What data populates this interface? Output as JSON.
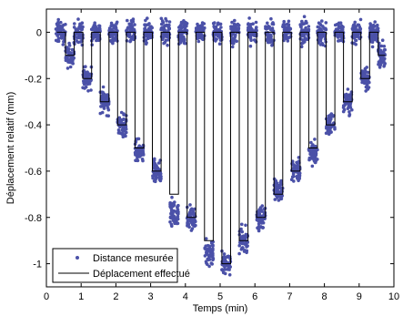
{
  "chart_data": {
    "type": "line",
    "title": "",
    "xlabel": "Temps (min)",
    "ylabel": "Déplacement relatif (mm)",
    "xlim": [
      0,
      10
    ],
    "ylim": [
      -1.1,
      0.1
    ],
    "x_ticks": [
      "0",
      "1",
      "2",
      "3",
      "4",
      "5",
      "6",
      "7",
      "8",
      "9",
      "10"
    ],
    "x_tick_values": [
      0,
      1,
      2,
      3,
      4,
      5,
      6,
      7,
      8,
      9,
      10
    ],
    "y_ticks": [
      "0",
      "-0.2",
      "-0.4",
      "-0.6",
      "-0.8",
      "-1"
    ],
    "y_tick_values": [
      0,
      -0.2,
      -0.4,
      -0.6,
      -0.8,
      -1
    ],
    "grid": false,
    "legend_position": "bottom-left",
    "series": [
      {
        "name": "Distance mesurée",
        "kind": "scatter",
        "marker": "dot",
        "color": "#4b51a8"
      },
      {
        "name": "Déplacement effectué",
        "kind": "step",
        "color": "#000000",
        "steps": [
          {
            "x0": 0.3,
            "x1": 0.55,
            "y": 0
          },
          {
            "x0": 0.55,
            "x1": 0.8,
            "y": -0.1
          },
          {
            "x0": 0.8,
            "x1": 1.05,
            "y": 0
          },
          {
            "x0": 1.05,
            "x1": 1.3,
            "y": -0.2
          },
          {
            "x0": 1.3,
            "x1": 1.55,
            "y": 0
          },
          {
            "x0": 1.55,
            "x1": 1.8,
            "y": -0.3
          },
          {
            "x0": 1.8,
            "x1": 2.05,
            "y": 0
          },
          {
            "x0": 2.05,
            "x1": 2.3,
            "y": -0.4
          },
          {
            "x0": 2.3,
            "x1": 2.55,
            "y": 0
          },
          {
            "x0": 2.55,
            "x1": 2.8,
            "y": -0.5
          },
          {
            "x0": 2.8,
            "x1": 3.05,
            "y": 0
          },
          {
            "x0": 3.05,
            "x1": 3.3,
            "y": -0.6
          },
          {
            "x0": 3.3,
            "x1": 3.55,
            "y": 0
          },
          {
            "x0": 3.55,
            "x1": 3.8,
            "y": -0.7
          },
          {
            "x0": 3.8,
            "x1": 4.05,
            "y": 0
          },
          {
            "x0": 4.05,
            "x1": 4.3,
            "y": -0.8
          },
          {
            "x0": 4.3,
            "x1": 4.55,
            "y": 0
          },
          {
            "x0": 4.55,
            "x1": 4.8,
            "y": -0.9
          },
          {
            "x0": 4.8,
            "x1": 5.05,
            "y": 0
          },
          {
            "x0": 5.05,
            "x1": 5.3,
            "y": -1.0
          },
          {
            "x0": 5.3,
            "x1": 5.55,
            "y": 0
          },
          {
            "x0": 5.55,
            "x1": 5.8,
            "y": -0.9
          },
          {
            "x0": 5.8,
            "x1": 6.05,
            "y": 0
          },
          {
            "x0": 6.05,
            "x1": 6.3,
            "y": -0.8
          },
          {
            "x0": 6.3,
            "x1": 6.55,
            "y": 0
          },
          {
            "x0": 6.55,
            "x1": 6.8,
            "y": -0.7
          },
          {
            "x0": 6.8,
            "x1": 7.05,
            "y": 0
          },
          {
            "x0": 7.05,
            "x1": 7.3,
            "y": -0.6
          },
          {
            "x0": 7.3,
            "x1": 7.55,
            "y": 0
          },
          {
            "x0": 7.55,
            "x1": 7.8,
            "y": -0.5
          },
          {
            "x0": 7.8,
            "x1": 8.05,
            "y": 0
          },
          {
            "x0": 8.05,
            "x1": 8.3,
            "y": -0.4
          },
          {
            "x0": 8.3,
            "x1": 8.55,
            "y": 0
          },
          {
            "x0": 8.55,
            "x1": 8.8,
            "y": -0.3
          },
          {
            "x0": 8.8,
            "x1": 9.05,
            "y": 0
          },
          {
            "x0": 9.05,
            "x1": 9.3,
            "y": -0.2
          },
          {
            "x0": 9.3,
            "x1": 9.55,
            "y": 0
          },
          {
            "x0": 9.55,
            "x1": 9.75,
            "y": -0.1
          }
        ]
      }
    ],
    "scatter_clusters": [
      {
        "x0": 0.25,
        "x1": 0.55,
        "y": 0,
        "spread": 0.04
      },
      {
        "x0": 0.55,
        "x1": 0.8,
        "y": -0.1,
        "spread": 0.04
      },
      {
        "x0": 0.8,
        "x1": 1.05,
        "y": 0,
        "spread": 0.04
      },
      {
        "x0": 1.05,
        "x1": 1.3,
        "y": -0.2,
        "spread": 0.04
      },
      {
        "x0": 1.3,
        "x1": 1.55,
        "y": 0,
        "spread": 0.04
      },
      {
        "x0": 1.55,
        "x1": 1.8,
        "y": -0.3,
        "spread": 0.04
      },
      {
        "x0": 1.8,
        "x1": 2.05,
        "y": 0,
        "spread": 0.04
      },
      {
        "x0": 2.05,
        "x1": 2.3,
        "y": -0.4,
        "spread": 0.04
      },
      {
        "x0": 2.3,
        "x1": 2.55,
        "y": 0,
        "spread": 0.04
      },
      {
        "x0": 2.55,
        "x1": 2.8,
        "y": -0.52,
        "spread": 0.04
      },
      {
        "x0": 2.8,
        "x1": 3.05,
        "y": 0,
        "spread": 0.04
      },
      {
        "x0": 3.05,
        "x1": 3.3,
        "y": -0.6,
        "spread": 0.04
      },
      {
        "x0": 3.3,
        "x1": 3.55,
        "y": 0,
        "spread": 0.04
      },
      {
        "x0": 3.55,
        "x1": 3.8,
        "y": -0.78,
        "spread": 0.05
      },
      {
        "x0": 3.8,
        "x1": 4.05,
        "y": 0,
        "spread": 0.04
      },
      {
        "x0": 4.05,
        "x1": 4.3,
        "y": -0.8,
        "spread": 0.04
      },
      {
        "x0": 4.3,
        "x1": 4.55,
        "y": 0,
        "spread": 0.04
      },
      {
        "x0": 4.55,
        "x1": 4.8,
        "y": -0.95,
        "spread": 0.05
      },
      {
        "x0": 4.8,
        "x1": 5.05,
        "y": 0,
        "spread": 0.04
      },
      {
        "x0": 5.05,
        "x1": 5.3,
        "y": -1.0,
        "spread": 0.04
      },
      {
        "x0": 5.3,
        "x1": 5.55,
        "y": 0,
        "spread": 0.04
      },
      {
        "x0": 5.55,
        "x1": 5.8,
        "y": -0.9,
        "spread": 0.04
      },
      {
        "x0": 5.8,
        "x1": 6.05,
        "y": 0,
        "spread": 0.04
      },
      {
        "x0": 6.05,
        "x1": 6.3,
        "y": -0.8,
        "spread": 0.04
      },
      {
        "x0": 6.3,
        "x1": 6.55,
        "y": 0,
        "spread": 0.04
      },
      {
        "x0": 6.55,
        "x1": 6.8,
        "y": -0.68,
        "spread": 0.04
      },
      {
        "x0": 6.8,
        "x1": 7.05,
        "y": 0,
        "spread": 0.04
      },
      {
        "x0": 7.05,
        "x1": 7.3,
        "y": -0.6,
        "spread": 0.04
      },
      {
        "x0": 7.3,
        "x1": 7.55,
        "y": 0,
        "spread": 0.04
      },
      {
        "x0": 7.55,
        "x1": 7.8,
        "y": -0.53,
        "spread": 0.04
      },
      {
        "x0": 7.8,
        "x1": 8.05,
        "y": 0,
        "spread": 0.04
      },
      {
        "x0": 8.05,
        "x1": 8.3,
        "y": -0.4,
        "spread": 0.04
      },
      {
        "x0": 8.3,
        "x1": 8.55,
        "y": 0,
        "spread": 0.04
      },
      {
        "x0": 8.55,
        "x1": 8.8,
        "y": -0.3,
        "spread": 0.04
      },
      {
        "x0": 8.8,
        "x1": 9.05,
        "y": 0,
        "spread": 0.04
      },
      {
        "x0": 9.05,
        "x1": 9.3,
        "y": -0.2,
        "spread": 0.04
      },
      {
        "x0": 9.3,
        "x1": 9.55,
        "y": 0,
        "spread": 0.04
      },
      {
        "x0": 9.55,
        "x1": 9.75,
        "y": -0.1,
        "spread": 0.04
      }
    ]
  }
}
